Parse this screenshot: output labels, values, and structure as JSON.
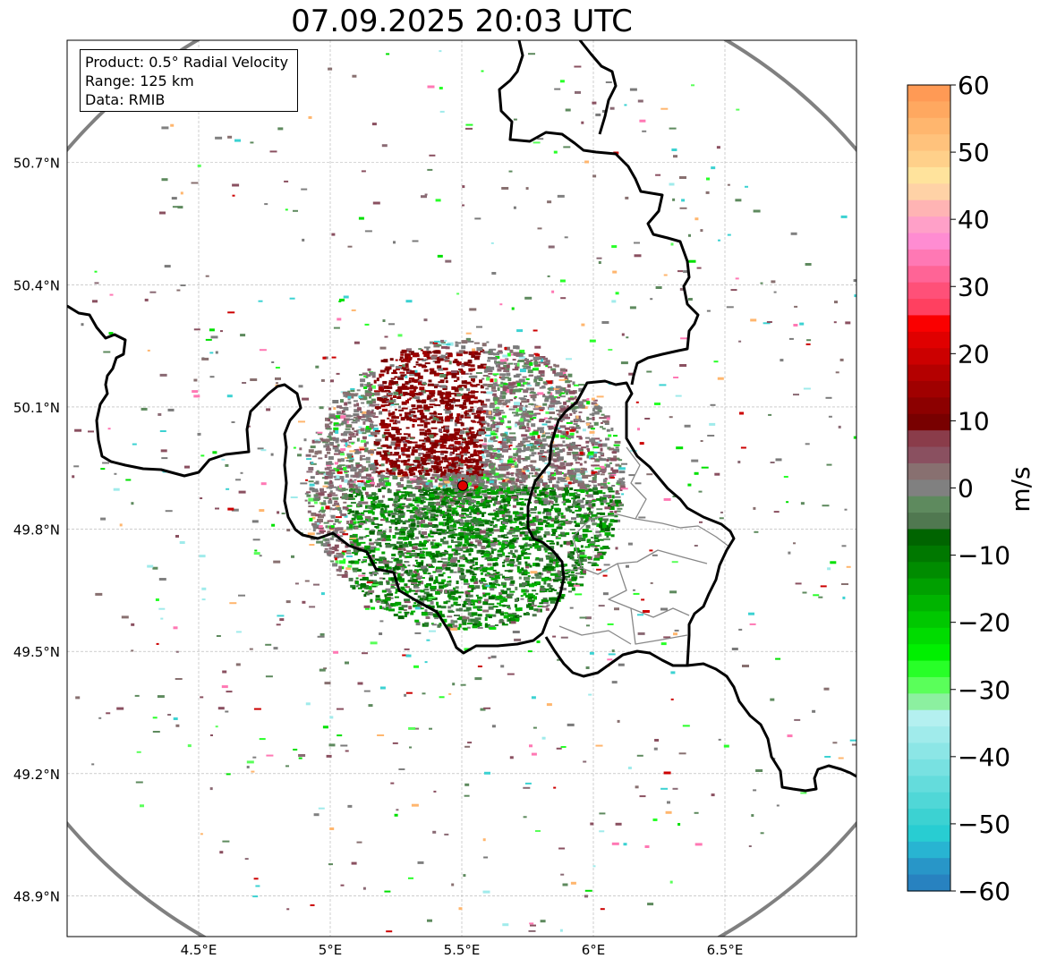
{
  "title": "07.09.2025 20:03 UTC",
  "info": {
    "product": "Product: 0.5° Radial Velocity",
    "range": "Range: 125 km",
    "data": "Data: RMIB"
  },
  "map": {
    "lon_range": [
      4.0,
      7.0
    ],
    "lat_range": [
      48.8,
      51.0
    ],
    "x_ticks": [
      {
        "value": 4.5,
        "label": "4.5°E"
      },
      {
        "value": 5.0,
        "label": "5°E"
      },
      {
        "value": 5.5,
        "label": "5.5°E"
      },
      {
        "value": 6.0,
        "label": "6°E"
      },
      {
        "value": 6.5,
        "label": "6.5°E"
      }
    ],
    "y_ticks": [
      {
        "value": 50.7,
        "label": "50.7°N"
      },
      {
        "value": 50.4,
        "label": "50.4°N"
      },
      {
        "value": 50.1,
        "label": "50.1°N"
      },
      {
        "value": 49.8,
        "label": "49.8°N"
      },
      {
        "value": 49.5,
        "label": "49.5°N"
      },
      {
        "value": 49.2,
        "label": "49.2°N"
      },
      {
        "value": 48.9,
        "label": "48.9°N"
      }
    ],
    "radar_site": {
      "lon": 5.505,
      "lat": 49.914
    },
    "range_km": 125,
    "gridlines": true
  },
  "colorbar": {
    "label": "m/s",
    "min": -60,
    "max": 60,
    "ticks": [
      60,
      50,
      40,
      30,
      20,
      10,
      0,
      -10,
      -20,
      -30,
      -40,
      -50,
      -60
    ],
    "tick_labels": [
      "60",
      "50",
      "40",
      "30",
      "20",
      "10",
      "0",
      "−10",
      "−20",
      "−30",
      "−40",
      "−50",
      "−60"
    ],
    "colors_top_to_bottom": [
      "#ff9a55",
      "#ffa860",
      "#ffb66e",
      "#ffc27c",
      "#ffd08a",
      "#ffe39c",
      "#ffd2a6",
      "#ffb4b4",
      "#ffa0c8",
      "#ff8cd2",
      "#ff78b4",
      "#ff6496",
      "#ff5078",
      "#ff4060",
      "#fa0000",
      "#e00000",
      "#cc0000",
      "#b40000",
      "#a00000",
      "#8c0000",
      "#780000",
      "#8a3c4a",
      "#8a5060",
      "#887070",
      "#808080",
      "#5e8a5e",
      "#507850",
      "#006400",
      "#007800",
      "#008c00",
      "#00a000",
      "#00b400",
      "#00c800",
      "#00dc00",
      "#00f000",
      "#28ff28",
      "#5aff5a",
      "#8cf0a0",
      "#b4f0f0",
      "#a0ebeb",
      "#8ce6e6",
      "#78e1e1",
      "#64dcdc",
      "#50d7d7",
      "#3cd2d2",
      "#28cdd2",
      "#28b4d2",
      "#2896c8",
      "#2882c0"
    ]
  },
  "colors": {
    "approaching": "#008000",
    "receding": "#8b0000",
    "near_zero": "#808080",
    "site_marker": "#e00000",
    "range_ring": "#808080",
    "border": "#000000",
    "subborder": "#808080"
  }
}
